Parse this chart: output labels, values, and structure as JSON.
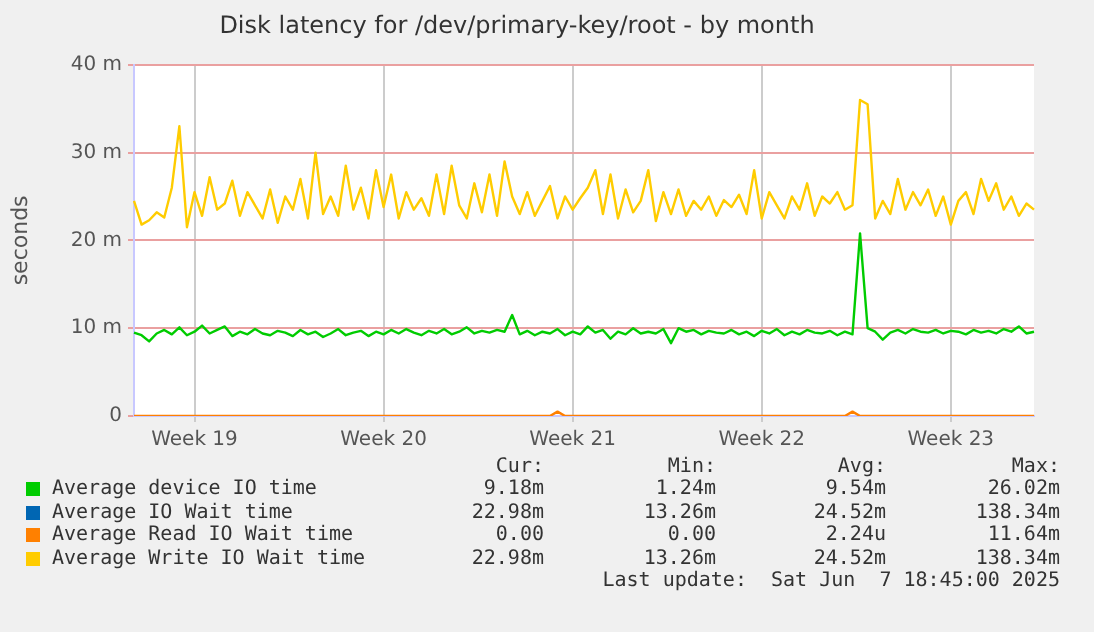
{
  "chart_data": {
    "type": "line",
    "title": "Disk latency for /dev/primary-key/root - by month",
    "ylabel": "seconds",
    "legend": "bottom",
    "grid": true,
    "marker": "none",
    "line_style": "solid",
    "categories": [
      null,
      null,
      null,
      null,
      null,
      null,
      null,
      null,
      "Week 19",
      null,
      null,
      null,
      null,
      null,
      null,
      null,
      null,
      null,
      null,
      null,
      null,
      null,
      null,
      null,
      null,
      null,
      null,
      null,
      null,
      null,
      null,
      null,
      null,
      "Week 20",
      null,
      null,
      null,
      null,
      null,
      null,
      null,
      null,
      null,
      null,
      null,
      null,
      null,
      null,
      null,
      null,
      null,
      null,
      null,
      null,
      null,
      null,
      null,
      null,
      "Week 21",
      null,
      null,
      null,
      null,
      null,
      null,
      null,
      null,
      null,
      null,
      null,
      null,
      null,
      null,
      null,
      null,
      null,
      null,
      null,
      null,
      null,
      null,
      null,
      null,
      "Week 22",
      null,
      null,
      null,
      null,
      null,
      null,
      null,
      null,
      null,
      null,
      null,
      null,
      null,
      null,
      null,
      null,
      null,
      null,
      null,
      null,
      null,
      null,
      null,
      null,
      "Week 23",
      null,
      null,
      null,
      null,
      null,
      null,
      null,
      null,
      null,
      null,
      null
    ],
    "ylim": [
      0,
      40
    ],
    "yticks": [
      {
        "value": 0,
        "label": "0"
      },
      {
        "value": 10,
        "label": "10 m"
      },
      {
        "value": 20,
        "label": "20 m"
      },
      {
        "value": 30,
        "label": "30 m"
      },
      {
        "value": 40,
        "label": "40 m"
      }
    ],
    "series": [
      {
        "name": "Average device IO time",
        "color": "#00cc00",
        "values": [
          9.5,
          9.2,
          8.5,
          9.4,
          9.8,
          9.3,
          10.1,
          9.2,
          9.6,
          10.3,
          9.4,
          9.8,
          10.2,
          9.1,
          9.6,
          9.3,
          9.9,
          9.4,
          9.2,
          9.7,
          9.5,
          9.1,
          9.8,
          9.3,
          9.6,
          9.0,
          9.4,
          9.9,
          9.2,
          9.5,
          9.7,
          9.1,
          9.6,
          9.3,
          9.8,
          9.4,
          9.9,
          9.5,
          9.2,
          9.7,
          9.4,
          9.9,
          9.3,
          9.6,
          10.1,
          9.4,
          9.7,
          9.5,
          9.8,
          9.6,
          11.5,
          9.3,
          9.7,
          9.2,
          9.6,
          9.4,
          9.9,
          9.2,
          9.6,
          9.3,
          10.2,
          9.5,
          9.8,
          8.8,
          9.6,
          9.3,
          10,
          9.4,
          9.6,
          9.4,
          9.9,
          8.3,
          10,
          9.6,
          9.8,
          9.3,
          9.7,
          9.5,
          9.4,
          9.8,
          9.3,
          9.6,
          9.1,
          9.7,
          9.4,
          9.9,
          9.2,
          9.6,
          9.3,
          9.8,
          9.5,
          9.4,
          9.7,
          9.2,
          9.6,
          9.3,
          20.8,
          10,
          9.6,
          8.7,
          9.5,
          9.8,
          9.4,
          9.9,
          9.6,
          9.5,
          9.8,
          9.4,
          9.7,
          9.6,
          9.3,
          9.8,
          9.5,
          9.7,
          9.4,
          9.9,
          9.6,
          10.2,
          9.4,
          9.6
        ]
      },
      {
        "name": "Average IO Wait time",
        "color": "#0066b3",
        "values": [
          null,
          null,
          null,
          null,
          null,
          null,
          null,
          null,
          null,
          null,
          null,
          null,
          null,
          null,
          null,
          null,
          null,
          null,
          null,
          null,
          null,
          null,
          null,
          null,
          null,
          null,
          null,
          null,
          null,
          null,
          null,
          null,
          null,
          null,
          null,
          null,
          null,
          null,
          null,
          null,
          null,
          null,
          null,
          null,
          null,
          null,
          null,
          null,
          null,
          null,
          null,
          null,
          null,
          null,
          null,
          null,
          null,
          null,
          null,
          null,
          null,
          null,
          null,
          null,
          null,
          null,
          null,
          null,
          null,
          null,
          null,
          null,
          null,
          null,
          null,
          null,
          null,
          null,
          null,
          null,
          null,
          null,
          null,
          null,
          null,
          null,
          null,
          null,
          null,
          null,
          null,
          null,
          null,
          null,
          null,
          null,
          null,
          null,
          null,
          null,
          null,
          null,
          null,
          null,
          null,
          null,
          null,
          null,
          null,
          null,
          null,
          null,
          null,
          null,
          null,
          null,
          null,
          null,
          null,
          null
        ]
      },
      {
        "name": "Average Read IO Wait time",
        "color": "#ff8000",
        "values": [
          0,
          0,
          0,
          0,
          0,
          0,
          0,
          0,
          0,
          0,
          0,
          0,
          0,
          0,
          0,
          0,
          0,
          0,
          0,
          0,
          0,
          0,
          0,
          0,
          0,
          0,
          0,
          0,
          0,
          0,
          0,
          0,
          0,
          0,
          0,
          0,
          0,
          0,
          0,
          0,
          0,
          0,
          0,
          0,
          0,
          0,
          0,
          0,
          0,
          0,
          0,
          0,
          0,
          0,
          0,
          0,
          0.5,
          0,
          0,
          0,
          0,
          0,
          0,
          0,
          0,
          0,
          0,
          0,
          0,
          0,
          0,
          0,
          0,
          0,
          0,
          0,
          0,
          0,
          0,
          0,
          0,
          0,
          0,
          0,
          0,
          0,
          0,
          0,
          0,
          0,
          0,
          0,
          0,
          0,
          0,
          0.5,
          0,
          0,
          0,
          0,
          0,
          0,
          0,
          0,
          0,
          0,
          0,
          0,
          0,
          0,
          0,
          0,
          0,
          0,
          0,
          0,
          0,
          0,
          0,
          0
        ]
      },
      {
        "name": "Average Write IO Wait time",
        "color": "#ffcc00",
        "values": [
          24.5,
          21.8,
          22.3,
          23.2,
          22.6,
          26,
          33,
          21.5,
          25.5,
          22.8,
          27.2,
          23.5,
          24.2,
          26.8,
          22.8,
          25.5,
          24,
          22.5,
          25.8,
          22,
          25,
          23.5,
          27,
          22.5,
          30,
          23,
          25,
          22.8,
          28.5,
          23.5,
          26,
          22.5,
          28,
          23.8,
          27.5,
          22.5,
          25.5,
          23.5,
          24.8,
          22.8,
          27.5,
          23,
          28.5,
          24,
          22.5,
          26.5,
          23.2,
          27.5,
          22.8,
          29,
          25,
          23,
          25.5,
          22.8,
          24.5,
          26.2,
          22.5,
          25,
          23.5,
          24.8,
          26,
          28,
          23,
          27.5,
          22.5,
          25.8,
          23.2,
          24.5,
          28,
          22.2,
          25.5,
          23,
          25.8,
          22.8,
          24.5,
          23.5,
          25,
          22.8,
          24.6,
          23.8,
          25.2,
          23,
          28,
          22.5,
          25.5,
          24,
          22.5,
          25,
          23.5,
          26.5,
          22.8,
          25,
          24.2,
          25.5,
          23.5,
          24,
          36,
          35.5,
          22.5,
          24.5,
          23,
          27,
          23.5,
          25.5,
          24,
          25.8,
          22.8,
          25,
          21.8,
          24.5,
          25.5,
          23,
          27,
          24.5,
          26.5,
          23.5,
          25,
          22.8,
          24.2,
          23.5
        ]
      }
    ],
    "annotations": [
      "Cur:",
      "Min:",
      "Avg:",
      "Max:",
      "9.18m",
      "1.24m",
      "9.54m",
      "26.02m",
      "22.98m",
      "13.26m",
      "24.52m",
      "138.34m",
      "0.00",
      "0.00",
      "2.24u",
      "11.64m",
      "22.98m",
      "13.26m",
      "24.52m",
      "138.34m",
      "Last update:  Sat Jun  7 18:45:00 2025"
    ]
  }
}
